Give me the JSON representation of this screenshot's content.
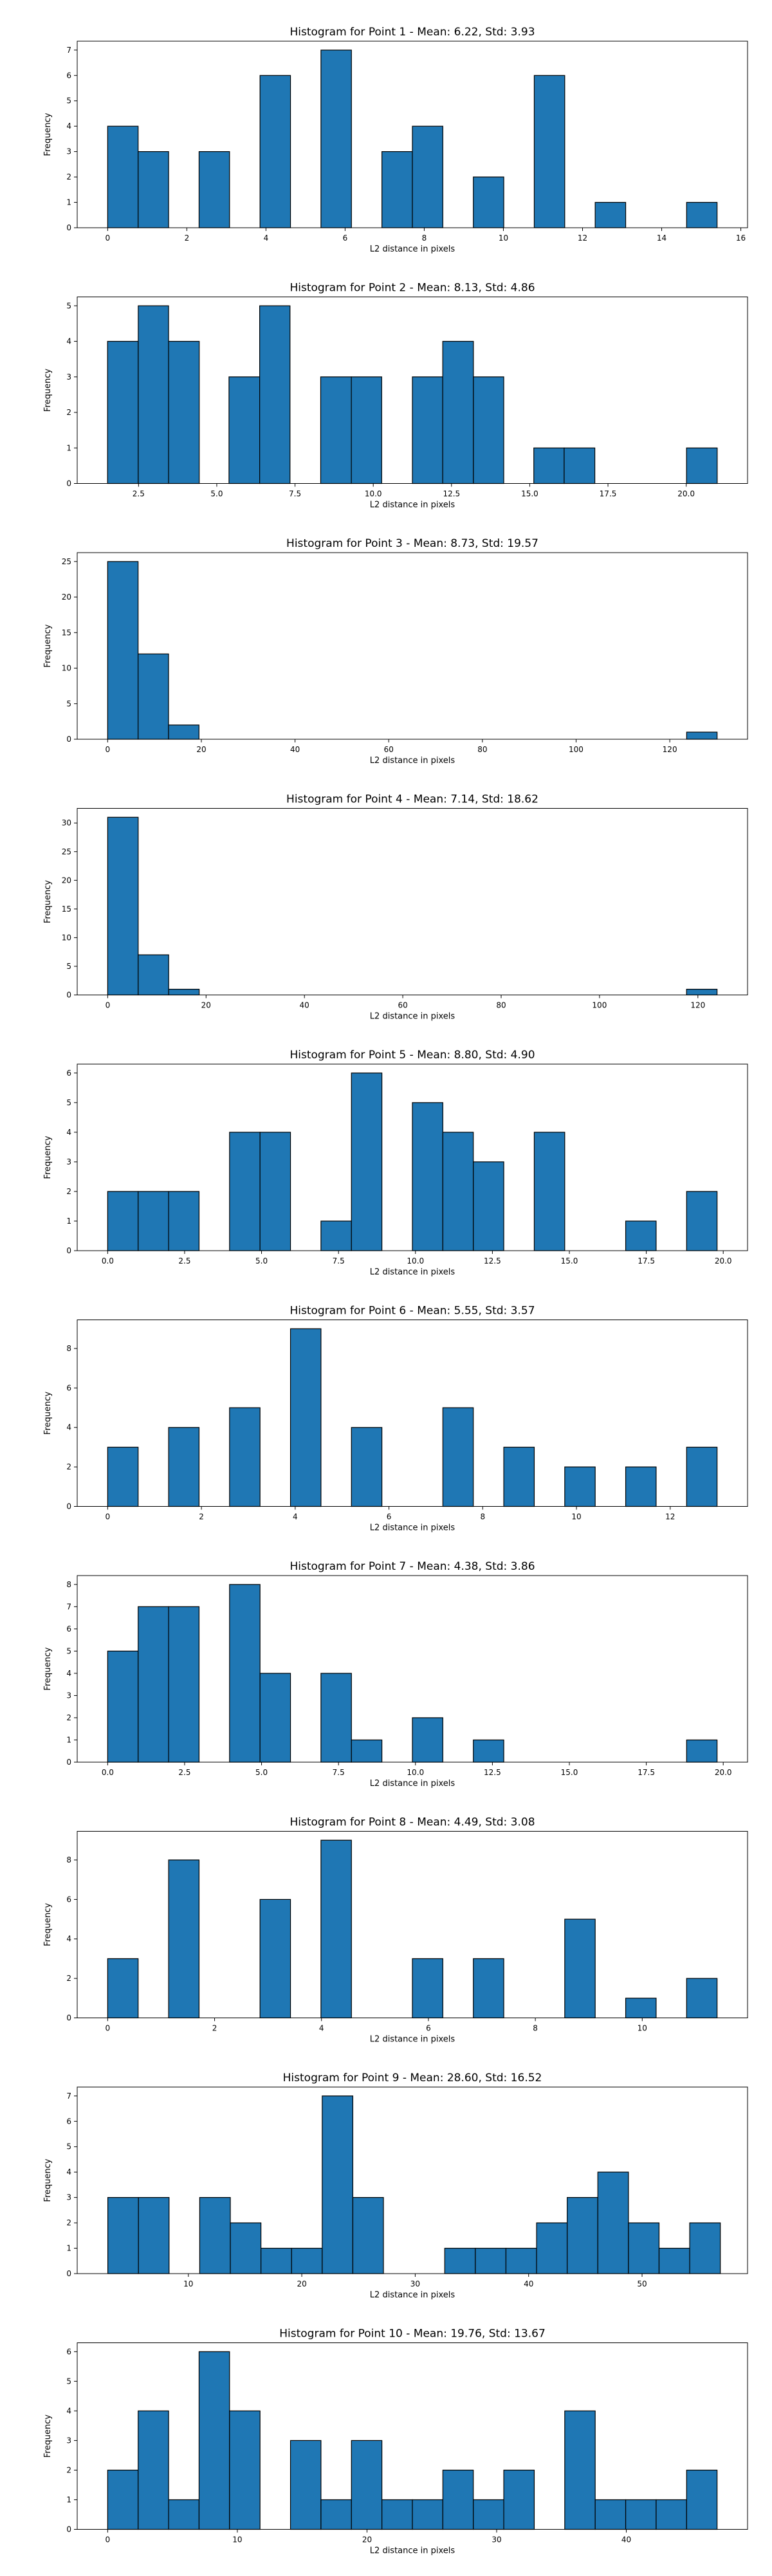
{
  "chart_data": [
    {
      "type": "bar",
      "title": "Histogram for Point 1 - Mean: 6.22, Std: 3.93",
      "xlabel": "L2 distance in pixels",
      "ylabel": "Frequency",
      "xlim": [
        -0.77,
        16.17
      ],
      "ylim": [
        0,
        7.35
      ],
      "xticks": [
        0,
        2,
        4,
        6,
        8,
        10,
        12,
        14,
        16
      ],
      "xtick_labels": [
        "0",
        "2",
        "4",
        "6",
        "8",
        "10",
        "12",
        "14",
        "16"
      ],
      "yticks": [
        0,
        1,
        2,
        3,
        4,
        5,
        6,
        7
      ],
      "ytick_labels": [
        "0",
        "1",
        "2",
        "3",
        "4",
        "5",
        "6",
        "7"
      ],
      "bins": [
        [
          0.0,
          0.77,
          4
        ],
        [
          0.77,
          1.54,
          3
        ],
        [
          2.31,
          3.08,
          3
        ],
        [
          3.85,
          4.62,
          6
        ],
        [
          5.39,
          6.16,
          7
        ],
        [
          6.93,
          7.7,
          3
        ],
        [
          7.7,
          8.47,
          4
        ],
        [
          9.24,
          10.01,
          2
        ],
        [
          10.78,
          11.55,
          6
        ],
        [
          12.32,
          13.09,
          1
        ],
        [
          14.63,
          15.4,
          1
        ]
      ]
    },
    {
      "type": "bar",
      "title": "Histogram for Point 2 - Mean: 8.13, Std: 4.86",
      "xlabel": "L2 distance in pixels",
      "ylabel": "Frequency",
      "xlim": [
        0.54,
        21.96
      ],
      "ylim": [
        0,
        5.25
      ],
      "xticks": [
        2.5,
        5.0,
        7.5,
        10.0,
        12.5,
        15.0,
        17.5,
        20.0
      ],
      "xtick_labels": [
        "2.5",
        "5.0",
        "7.5",
        "10.0",
        "12.5",
        "15.0",
        "17.5",
        "20.0"
      ],
      "yticks": [
        0,
        1,
        2,
        3,
        4,
        5
      ],
      "ytick_labels": [
        "0",
        "1",
        "2",
        "3",
        "4",
        "5"
      ],
      "bins": [
        [
          1.51,
          2.49,
          4
        ],
        [
          2.49,
          3.46,
          5
        ],
        [
          3.46,
          4.44,
          4
        ],
        [
          5.39,
          6.37,
          3
        ],
        [
          6.37,
          7.34,
          5
        ],
        [
          8.32,
          9.3,
          3
        ],
        [
          9.3,
          10.27,
          3
        ],
        [
          11.25,
          12.22,
          3
        ],
        [
          12.22,
          13.2,
          4
        ],
        [
          13.2,
          14.17,
          3
        ],
        [
          15.13,
          16.1,
          1
        ],
        [
          16.1,
          17.08,
          1
        ],
        [
          20.01,
          20.99,
          1
        ]
      ]
    },
    {
      "type": "bar",
      "title": "Histogram for Point 3 - Mean: 8.73, Std: 19.57",
      "xlabel": "L2 distance in pixels",
      "ylabel": "Frequency",
      "xlim": [
        -6.5,
        136.6
      ],
      "ylim": [
        0,
        26.25
      ],
      "xticks": [
        0,
        20,
        40,
        60,
        80,
        100,
        120
      ],
      "xtick_labels": [
        "0",
        "20",
        "40",
        "60",
        "80",
        "100",
        "120"
      ],
      "yticks": [
        0,
        5,
        10,
        15,
        20,
        25
      ],
      "ytick_labels": [
        "0",
        "5",
        "10",
        "15",
        "20",
        "25"
      ],
      "bins": [
        [
          0.0,
          6.5,
          25
        ],
        [
          6.5,
          13.0,
          12
        ],
        [
          13.0,
          19.5,
          2
        ],
        [
          123.6,
          130.1,
          1
        ]
      ]
    },
    {
      "type": "bar",
      "title": "Histogram for Point 4 - Mean: 7.14, Std: 18.62",
      "xlabel": "L2 distance in pixels",
      "ylabel": "Frequency",
      "xlim": [
        -6.2,
        130.1
      ],
      "ylim": [
        0,
        32.55
      ],
      "xticks": [
        0,
        20,
        40,
        60,
        80,
        100,
        120
      ],
      "xtick_labels": [
        "0",
        "20",
        "40",
        "60",
        "80",
        "100",
        "120"
      ],
      "yticks": [
        0,
        5,
        10,
        15,
        20,
        25,
        30
      ],
      "ytick_labels": [
        "0",
        "5",
        "10",
        "15",
        "20",
        "25",
        "30"
      ],
      "bins": [
        [
          0.0,
          6.2,
          31
        ],
        [
          6.2,
          12.4,
          7
        ],
        [
          12.4,
          18.6,
          1
        ],
        [
          117.7,
          123.9,
          1
        ]
      ]
    },
    {
      "type": "bar",
      "title": "Histogram for Point 5 - Mean: 8.80, Std: 4.90",
      "xlabel": "L2 distance in pixels",
      "ylabel": "Frequency",
      "xlim": [
        -0.99,
        20.79
      ],
      "ylim": [
        0,
        6.3
      ],
      "xticks": [
        0.0,
        2.5,
        5.0,
        7.5,
        10.0,
        12.5,
        15.0,
        17.5,
        20.0
      ],
      "xtick_labels": [
        "0.0",
        "2.5",
        "5.0",
        "7.5",
        "10.0",
        "12.5",
        "15.0",
        "17.5",
        "20.0"
      ],
      "yticks": [
        0,
        1,
        2,
        3,
        4,
        5,
        6
      ],
      "ytick_labels": [
        "0",
        "1",
        "2",
        "3",
        "4",
        "5",
        "6"
      ],
      "bins": [
        [
          0.0,
          0.99,
          2
        ],
        [
          0.99,
          1.98,
          2
        ],
        [
          1.98,
          2.97,
          2
        ],
        [
          3.96,
          4.95,
          4
        ],
        [
          4.95,
          5.94,
          4
        ],
        [
          6.93,
          7.92,
          1
        ],
        [
          7.92,
          8.91,
          6
        ],
        [
          9.9,
          10.89,
          5
        ],
        [
          10.89,
          11.88,
          4
        ],
        [
          11.88,
          12.87,
          3
        ],
        [
          13.86,
          14.85,
          4
        ],
        [
          16.83,
          17.82,
          1
        ],
        [
          18.81,
          19.8,
          2
        ]
      ]
    },
    {
      "type": "bar",
      "title": "Histogram for Point 6 - Mean: 5.55, Std: 3.57",
      "xlabel": "L2 distance in pixels",
      "ylabel": "Frequency",
      "xlim": [
        -0.65,
        13.65
      ],
      "ylim": [
        0,
        9.45
      ],
      "xticks": [
        0,
        2,
        4,
        6,
        8,
        10,
        12
      ],
      "xtick_labels": [
        "0",
        "2",
        "4",
        "6",
        "8",
        "10",
        "12"
      ],
      "yticks": [
        0,
        2,
        4,
        6,
        8
      ],
      "ytick_labels": [
        "0",
        "2",
        "4",
        "6",
        "8"
      ],
      "bins": [
        [
          0.0,
          0.65,
          3
        ],
        [
          1.3,
          1.95,
          4
        ],
        [
          2.6,
          3.25,
          5
        ],
        [
          3.9,
          4.55,
          9
        ],
        [
          5.2,
          5.85,
          4
        ],
        [
          7.15,
          7.8,
          5
        ],
        [
          8.45,
          9.1,
          3
        ],
        [
          9.75,
          10.4,
          2
        ],
        [
          11.05,
          11.7,
          2
        ],
        [
          12.35,
          13.0,
          3
        ]
      ]
    },
    {
      "type": "bar",
      "title": "Histogram for Point 7 - Mean: 4.38, Std: 3.86",
      "xlabel": "L2 distance in pixels",
      "ylabel": "Frequency",
      "xlim": [
        -0.99,
        20.79
      ],
      "ylim": [
        0,
        8.4
      ],
      "xticks": [
        0.0,
        2.5,
        5.0,
        7.5,
        10.0,
        12.5,
        15.0,
        17.5,
        20.0
      ],
      "xtick_labels": [
        "0.0",
        "2.5",
        "5.0",
        "7.5",
        "10.0",
        "12.5",
        "15.0",
        "17.5",
        "20.0"
      ],
      "yticks": [
        0,
        1,
        2,
        3,
        4,
        5,
        6,
        7,
        8
      ],
      "ytick_labels": [
        "0",
        "1",
        "2",
        "3",
        "4",
        "5",
        "6",
        "7",
        "8"
      ],
      "bins": [
        [
          0.0,
          0.99,
          5
        ],
        [
          0.99,
          1.98,
          7
        ],
        [
          1.98,
          2.97,
          7
        ],
        [
          3.96,
          4.95,
          8
        ],
        [
          4.95,
          5.94,
          4
        ],
        [
          6.93,
          7.92,
          4
        ],
        [
          7.92,
          8.91,
          1
        ],
        [
          9.9,
          10.89,
          2
        ],
        [
          11.88,
          12.87,
          1
        ],
        [
          18.81,
          19.8,
          1
        ]
      ]
    },
    {
      "type": "bar",
      "title": "Histogram for Point 8 - Mean: 4.49, Std: 3.08",
      "xlabel": "L2 distance in pixels",
      "ylabel": "Frequency",
      "xlim": [
        -0.57,
        11.97
      ],
      "ylim": [
        0,
        9.45
      ],
      "xticks": [
        0,
        2,
        4,
        6,
        8,
        10
      ],
      "xtick_labels": [
        "0",
        "2",
        "4",
        "6",
        "8",
        "10"
      ],
      "yticks": [
        0,
        2,
        4,
        6,
        8
      ],
      "ytick_labels": [
        "0",
        "2",
        "4",
        "6",
        "8"
      ],
      "bins": [
        [
          0.0,
          0.57,
          3
        ],
        [
          1.14,
          1.71,
          8
        ],
        [
          2.85,
          3.42,
          6
        ],
        [
          3.99,
          4.56,
          9
        ],
        [
          5.7,
          6.27,
          3
        ],
        [
          6.84,
          7.41,
          3
        ],
        [
          8.55,
          9.12,
          5
        ],
        [
          9.69,
          10.26,
          1
        ],
        [
          10.83,
          11.4,
          2
        ]
      ]
    },
    {
      "type": "bar",
      "title": "Histogram for Point 9 - Mean: 28.60, Std: 16.52",
      "xlabel": "L2 distance in pixels",
      "ylabel": "Frequency",
      "xlim": [
        0.2,
        59.3
      ],
      "ylim": [
        0,
        7.35
      ],
      "xticks": [
        10,
        20,
        30,
        40,
        50
      ],
      "xtick_labels": [
        "10",
        "20",
        "30",
        "40",
        "50"
      ],
      "yticks": [
        0,
        1,
        2,
        3,
        4,
        5,
        6,
        7
      ],
      "ytick_labels": [
        "0",
        "1",
        "2",
        "3",
        "4",
        "5",
        "6",
        "7"
      ],
      "bins": [
        [
          2.9,
          5.6,
          3
        ],
        [
          5.6,
          8.3,
          3
        ],
        [
          11.0,
          13.7,
          3
        ],
        [
          13.7,
          16.4,
          2
        ],
        [
          16.4,
          19.1,
          1
        ],
        [
          19.1,
          21.8,
          1
        ],
        [
          21.8,
          24.5,
          7
        ],
        [
          24.5,
          27.2,
          3
        ],
        [
          32.6,
          35.3,
          1
        ],
        [
          35.3,
          38.0,
          1
        ],
        [
          38.0,
          40.7,
          1
        ],
        [
          40.7,
          43.4,
          2
        ],
        [
          43.4,
          46.1,
          3
        ],
        [
          46.1,
          48.8,
          4
        ],
        [
          48.8,
          51.5,
          2
        ],
        [
          51.5,
          54.2,
          1
        ],
        [
          54.2,
          56.9,
          2
        ]
      ]
    },
    {
      "type": "bar",
      "title": "Histogram for Point 10 - Mean: 19.76, Std: 13.67",
      "xlabel": "L2 distance in pixels",
      "ylabel": "Frequency",
      "xlim": [
        -2.35,
        49.35
      ],
      "ylim": [
        0,
        6.3
      ],
      "xticks": [
        0,
        10,
        20,
        30,
        40
      ],
      "xtick_labels": [
        "0",
        "10",
        "20",
        "30",
        "40"
      ],
      "yticks": [
        0,
        1,
        2,
        3,
        4,
        5,
        6
      ],
      "ytick_labels": [
        "0",
        "1",
        "2",
        "3",
        "4",
        "5",
        "6"
      ],
      "bins": [
        [
          0.0,
          2.35,
          2
        ],
        [
          2.35,
          4.7,
          4
        ],
        [
          4.7,
          7.05,
          1
        ],
        [
          7.05,
          9.4,
          6
        ],
        [
          9.4,
          11.75,
          4
        ],
        [
          14.1,
          16.45,
          3
        ],
        [
          16.45,
          18.8,
          1
        ],
        [
          18.8,
          21.15,
          3
        ],
        [
          21.15,
          23.5,
          1
        ],
        [
          23.5,
          25.85,
          1
        ],
        [
          25.85,
          28.2,
          2
        ],
        [
          28.2,
          30.55,
          1
        ],
        [
          30.55,
          32.9,
          2
        ],
        [
          35.25,
          37.6,
          4
        ],
        [
          37.6,
          39.95,
          1
        ],
        [
          39.95,
          42.3,
          1
        ],
        [
          42.3,
          44.65,
          1
        ],
        [
          44.65,
          47.0,
          2
        ]
      ]
    }
  ],
  "style": {
    "bar_color": "#1f77b4",
    "bar_edge_color": "#000000",
    "axis_color": "#000000",
    "text_color": "#000000",
    "background": "#ffffff"
  }
}
